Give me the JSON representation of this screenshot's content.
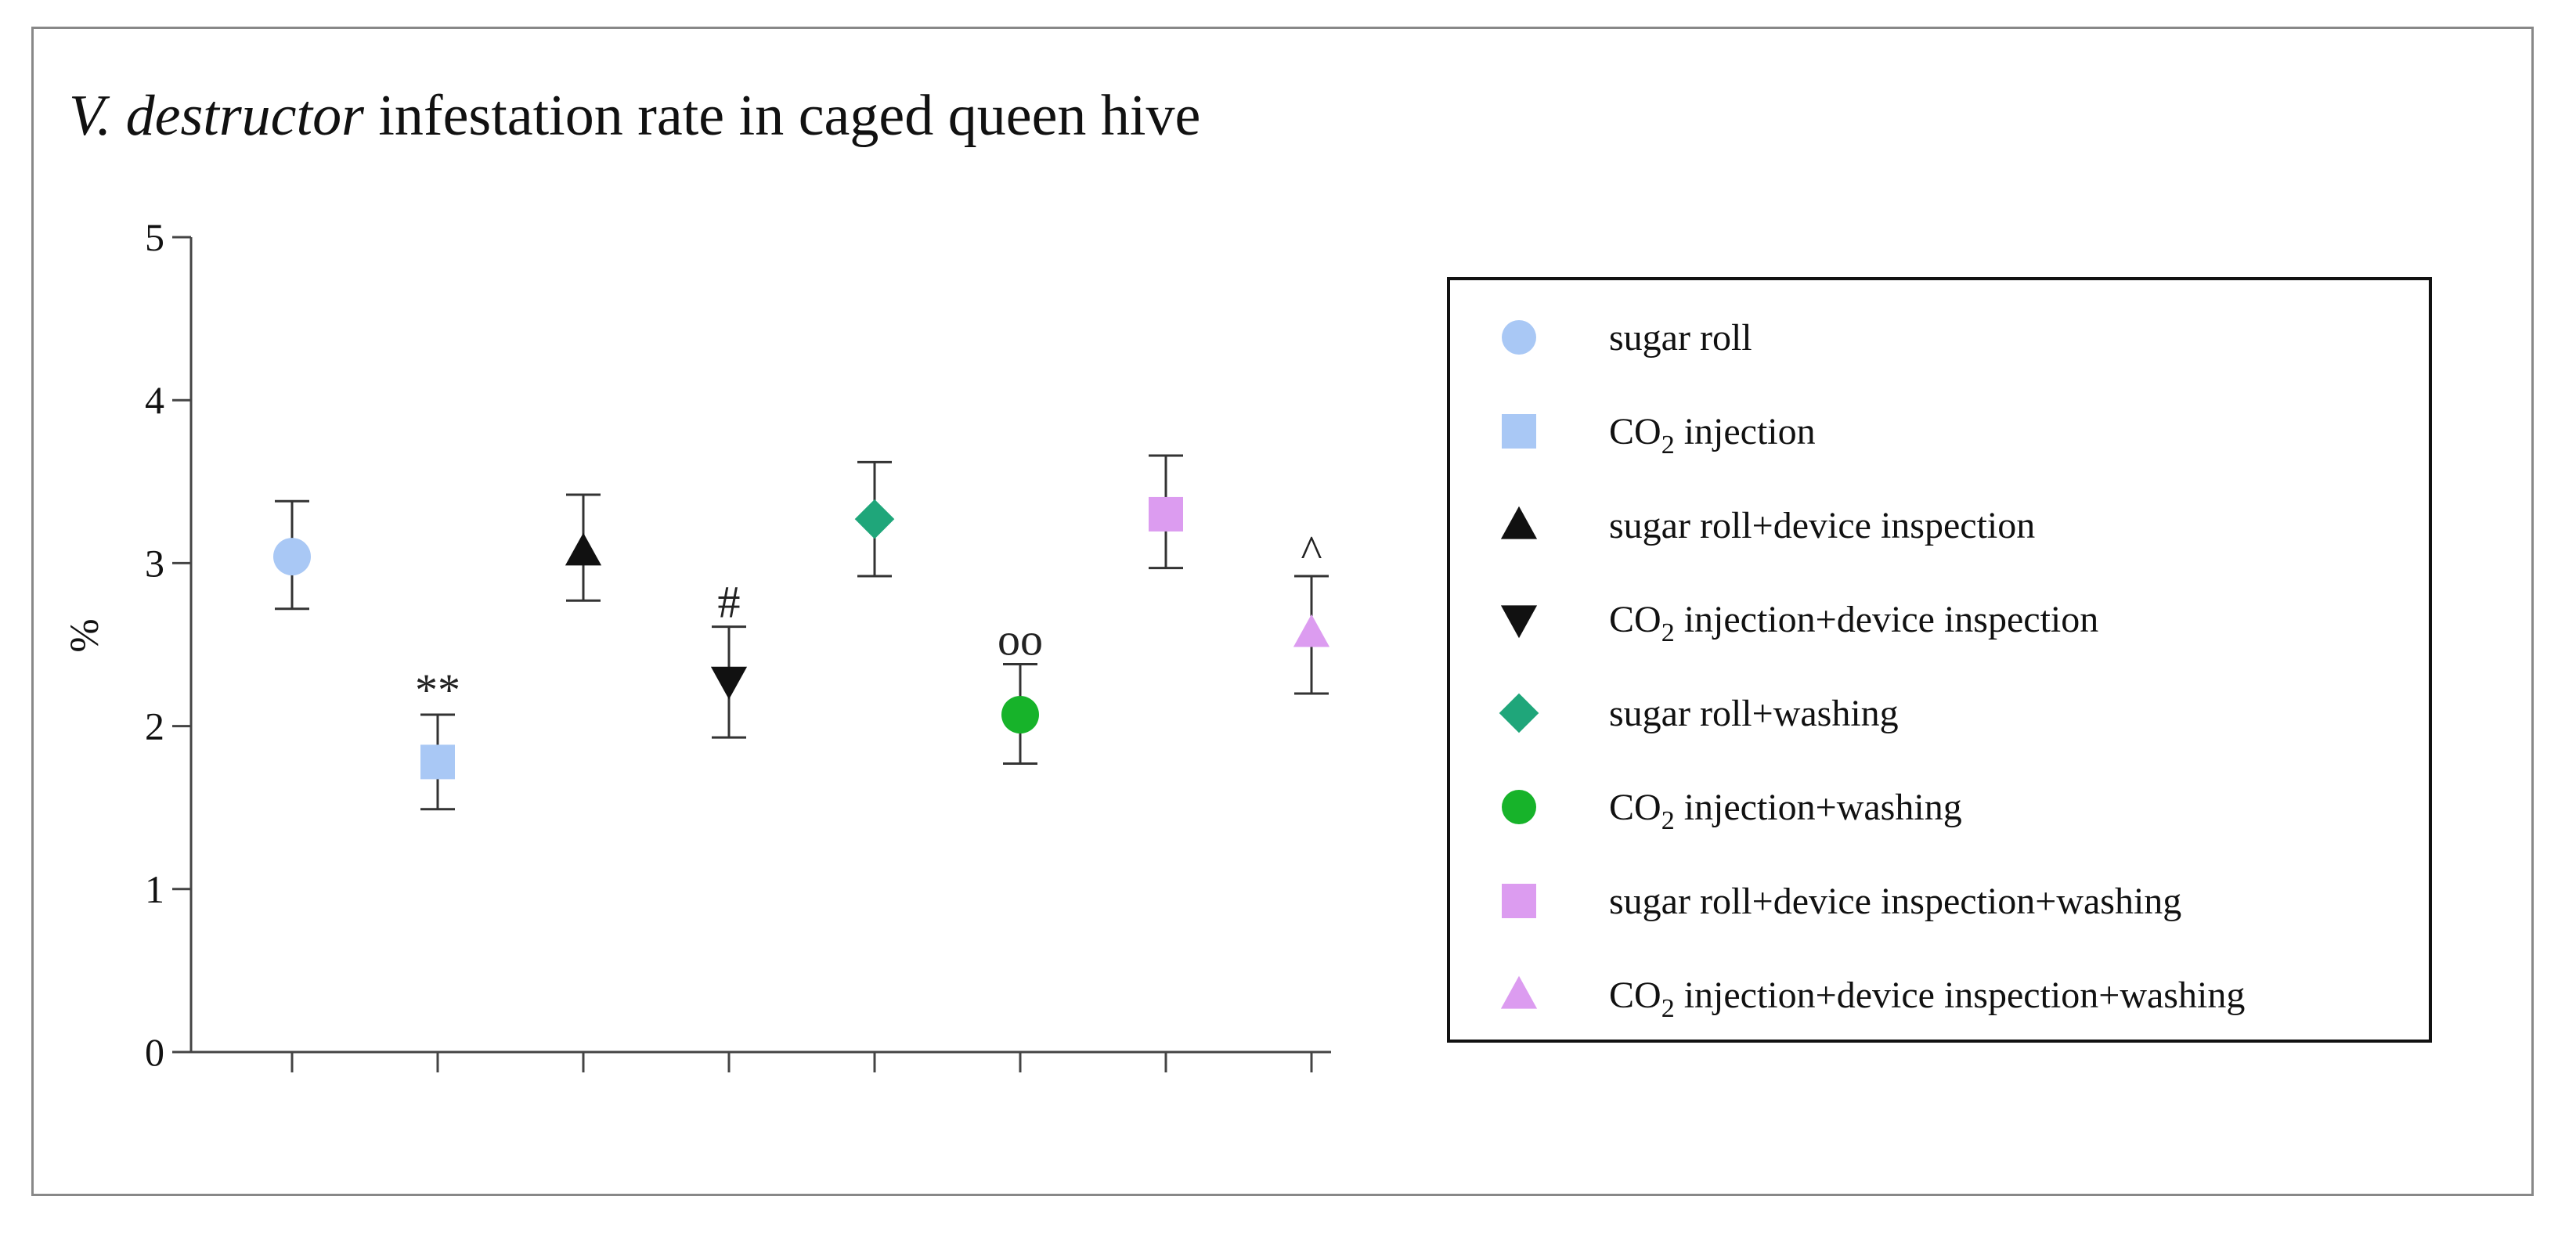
{
  "chart_data": {
    "type": "scatter",
    "title_italic": "V. destructor",
    "title_rest": " infestation rate in caged queen hive",
    "xlabel": "",
    "ylabel": "%",
    "ylim": [
      0,
      5
    ],
    "yticks": [
      "0",
      "1",
      "2",
      "3",
      "4",
      "5"
    ],
    "grid": false,
    "legend_position": "right",
    "series": [
      {
        "name": "sugar roll",
        "name_parts": [
          "sugar roll"
        ],
        "value": 3.04,
        "err_low": 2.72,
        "err_high": 3.38,
        "marker": "circle",
        "color": "#a9c8f5",
        "annotation": ""
      },
      {
        "name": "CO2 injection",
        "name_parts": [
          "CO",
          "2",
          " injection"
        ],
        "value": 1.78,
        "err_low": 1.49,
        "err_high": 2.07,
        "marker": "square",
        "color": "#a9c8f5",
        "annotation": "**"
      },
      {
        "name": "sugar roll+device inspection",
        "name_parts": [
          "sugar roll+device inspection"
        ],
        "value": 3.07,
        "err_low": 2.77,
        "err_high": 3.42,
        "marker": "triangle-up",
        "color": "#111111",
        "annotation": ""
      },
      {
        "name": "CO2 injection+device inspection",
        "name_parts": [
          "CO",
          "2",
          " injection+device inspection"
        ],
        "value": 2.28,
        "err_low": 1.93,
        "err_high": 2.61,
        "marker": "triangle-down",
        "color": "#111111",
        "annotation": "#"
      },
      {
        "name": "sugar roll+washing",
        "name_parts": [
          "sugar roll+washing"
        ],
        "value": 3.27,
        "err_low": 2.92,
        "err_high": 3.62,
        "marker": "diamond",
        "color": "#1fa67a",
        "annotation": ""
      },
      {
        "name": "CO2 injection+washing",
        "name_parts": [
          "CO",
          "2",
          " injection+washing"
        ],
        "value": 2.07,
        "err_low": 1.77,
        "err_high": 2.38,
        "marker": "circle",
        "color": "#17b32a",
        "annotation": "oo"
      },
      {
        "name": "sugar roll+device inspection+washing",
        "name_parts": [
          "sugar roll+device inspection+washing"
        ],
        "value": 3.3,
        "err_low": 2.97,
        "err_high": 3.66,
        "marker": "square",
        "color": "#dc9cf0",
        "annotation": ""
      },
      {
        "name": "CO2 injection+device inspection+washing",
        "name_parts": [
          "CO",
          "2",
          " injection+device inspection+washing"
        ],
        "value": 2.57,
        "err_low": 2.2,
        "err_high": 2.92,
        "marker": "triangle-up",
        "color": "#dc9cf0",
        "annotation": "^"
      }
    ]
  }
}
